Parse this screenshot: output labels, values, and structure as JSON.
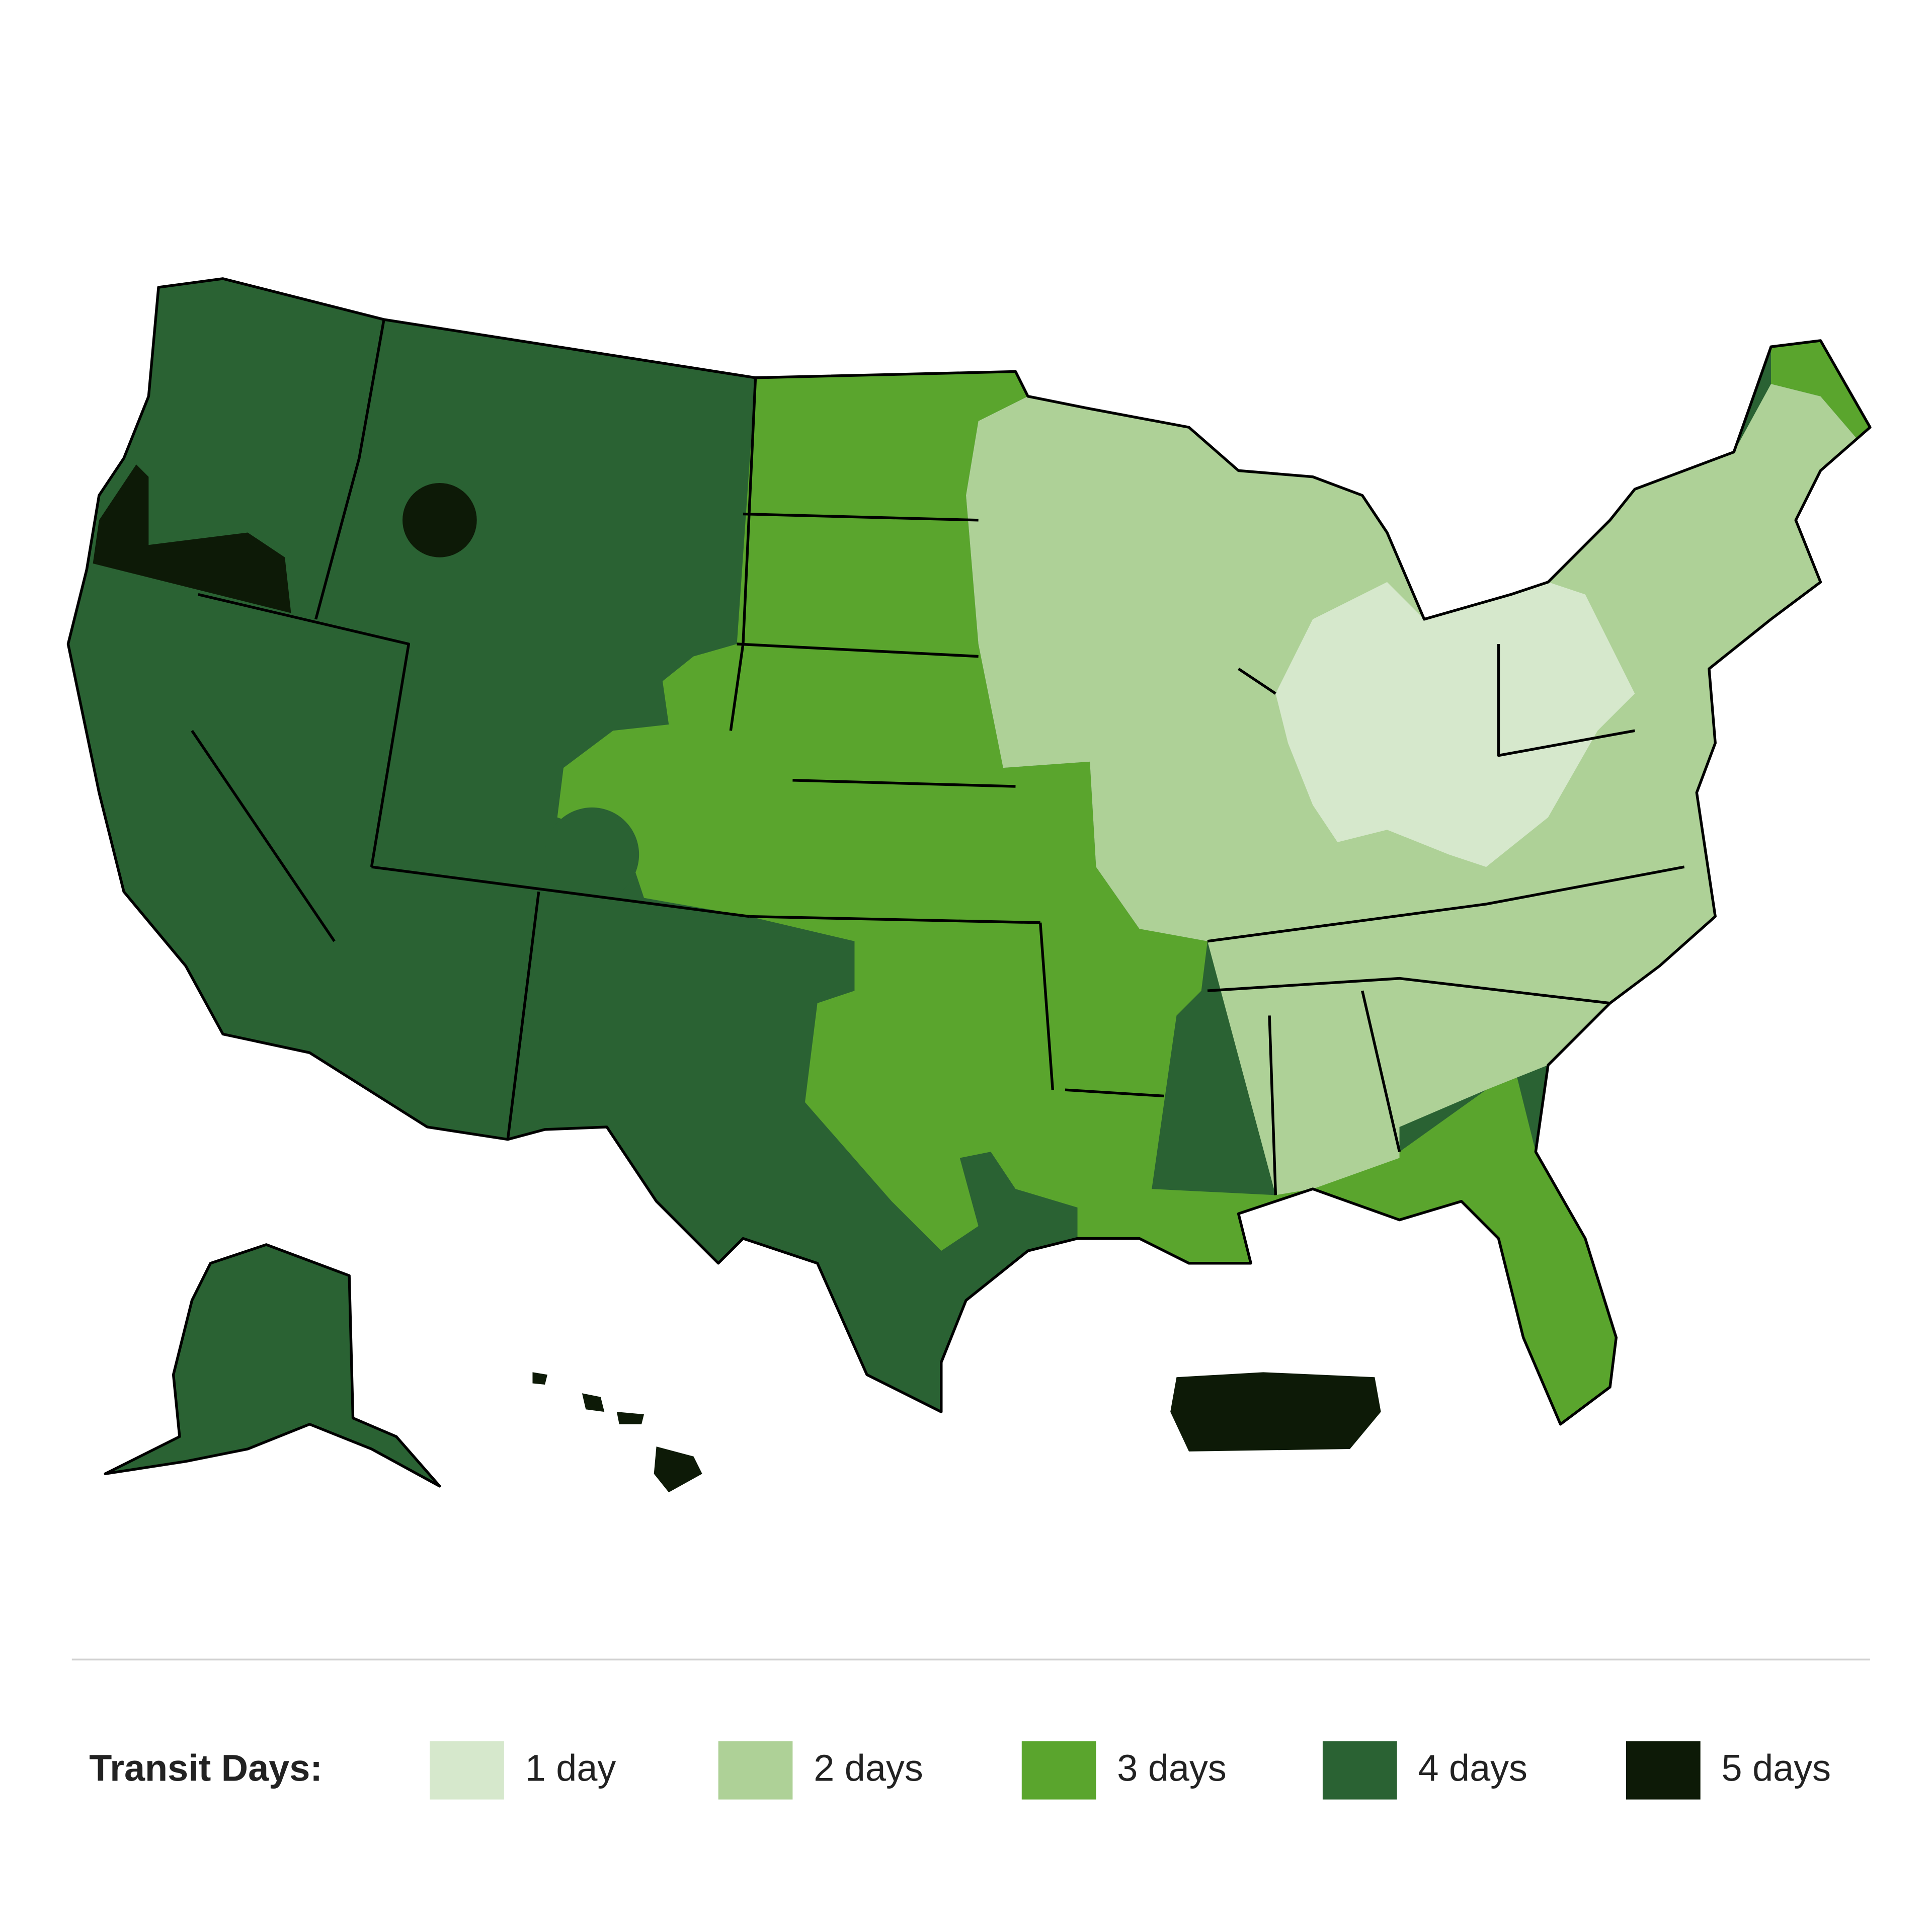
{
  "legend": {
    "title": "Transit Days:",
    "items": [
      {
        "label": "1 day",
        "color": "#d6e8cc"
      },
      {
        "label": "2 days",
        "color": "#aed197"
      },
      {
        "label": "3 days",
        "color": "#5aa52d"
      },
      {
        "label": "4 days",
        "color": "#2a6233"
      },
      {
        "label": "5 days",
        "color": "#0d1a07"
      }
    ]
  }
}
